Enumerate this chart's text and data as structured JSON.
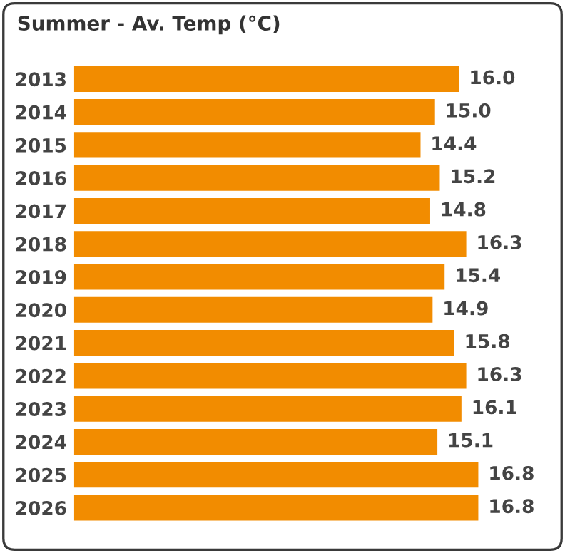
{
  "chart_data": {
    "type": "bar",
    "orientation": "horizontal",
    "title": "Summer - Av. Temp (°C)",
    "categories": [
      "2013",
      "2014",
      "2015",
      "2016",
      "2017",
      "2018",
      "2019",
      "2020",
      "2021",
      "2022",
      "2023",
      "2024",
      "2025",
      "2026"
    ],
    "values": [
      16.0,
      15.0,
      14.4,
      15.2,
      14.8,
      16.3,
      15.4,
      14.9,
      15.8,
      16.3,
      16.1,
      15.1,
      16.8,
      16.8
    ],
    "value_labels": [
      "16.0",
      "15.0",
      "14.4",
      "15.2",
      "14.8",
      "16.3",
      "15.4",
      "14.9",
      "15.8",
      "16.3",
      "16.1",
      "15.1",
      "16.8",
      "16.8"
    ],
    "color": "#f28c00",
    "tick_labels": "y",
    "grid": false,
    "legend": false
  }
}
